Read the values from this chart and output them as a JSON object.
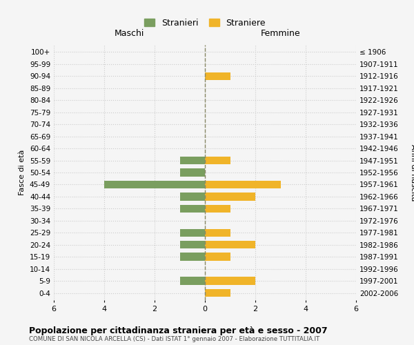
{
  "age_groups": [
    "0-4",
    "5-9",
    "10-14",
    "15-19",
    "20-24",
    "25-29",
    "30-34",
    "35-39",
    "40-44",
    "45-49",
    "50-54",
    "55-59",
    "60-64",
    "65-69",
    "70-74",
    "75-79",
    "80-84",
    "85-89",
    "90-94",
    "95-99",
    "100+"
  ],
  "birth_years": [
    "2002-2006",
    "1997-2001",
    "1992-1996",
    "1987-1991",
    "1982-1986",
    "1977-1981",
    "1972-1976",
    "1967-1971",
    "1962-1966",
    "1957-1961",
    "1952-1956",
    "1947-1951",
    "1942-1946",
    "1937-1941",
    "1932-1936",
    "1927-1931",
    "1922-1926",
    "1917-1921",
    "1912-1916",
    "1907-1911",
    "≤ 1906"
  ],
  "maschi": [
    0,
    1,
    0,
    1,
    1,
    1,
    0,
    1,
    1,
    4,
    1,
    1,
    0,
    0,
    0,
    0,
    0,
    0,
    0,
    0,
    0
  ],
  "femmine": [
    1,
    2,
    0,
    1,
    2,
    1,
    0,
    1,
    2,
    3,
    0,
    1,
    0,
    0,
    0,
    0,
    0,
    0,
    1,
    0,
    0
  ],
  "color_maschi": "#7a9e5f",
  "color_femmine": "#f0b429",
  "title": "Popolazione per cittadinanza straniera per età e sesso - 2007",
  "subtitle": "COMUNE DI SAN NICOLA ARCELLA (CS) - Dati ISTAT 1° gennaio 2007 - Elaborazione TUTTITALIA.IT",
  "legend_maschi": "Stranieri",
  "legend_femmine": "Straniere",
  "xlabel_left": "Maschi",
  "xlabel_right": "Femmine",
  "ylabel_left": "Fasce di età",
  "ylabel_right": "Anni di nascita",
  "xlim": 6,
  "background_color": "#f5f5f5",
  "grid_color": "#cccccc"
}
